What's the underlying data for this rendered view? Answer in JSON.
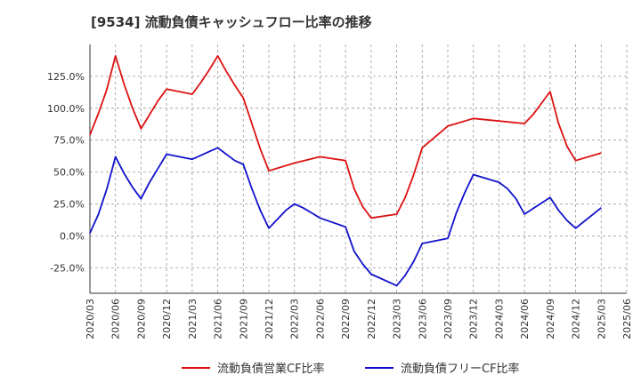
{
  "title": "[9534]  流動負債キャッシュフロー比率の推移",
  "chart_data": {
    "type": "line",
    "title": "[9534]  流動負債キャッシュフロー比率の推移",
    "xlabel": "",
    "ylabel": "",
    "ylim": [
      -45,
      150
    ],
    "yticks": [
      -25,
      0,
      25,
      50,
      75,
      100,
      125
    ],
    "ytick_labels": [
      "-25.0%",
      "0.0%",
      "25.0%",
      "50.0%",
      "75.0%",
      "100.0%",
      "125.0%"
    ],
    "xtick_labels": [
      "2020/03",
      "2020/06",
      "2020/09",
      "2020/12",
      "2021/03",
      "2021/06",
      "2021/09",
      "2021/12",
      "2022/03",
      "2022/06",
      "2022/09",
      "2022/12",
      "2023/03",
      "2023/06",
      "2023/09",
      "2023/12",
      "2024/03",
      "2024/06",
      "2024/09",
      "2024/12",
      "2025/03",
      "2025/06"
    ],
    "grid": true,
    "legend_position": "bottom",
    "series": [
      {
        "name": "流動負債営業CF比率",
        "color": "#dd1111",
        "x": [
          "2020/03",
          "2020/04",
          "2020/05",
          "2020/06",
          "2020/07",
          "2020/08",
          "2020/09",
          "2020/10",
          "2020/11",
          "2020/12",
          "2021/03",
          "2021/04",
          "2021/05",
          "2021/06",
          "2021/07",
          "2021/08",
          "2021/09",
          "2021/10",
          "2021/11",
          "2021/12",
          "2022/03",
          "2022/06",
          "2022/09",
          "2022/10",
          "2022/11",
          "2022/12",
          "2023/03",
          "2023/04",
          "2023/05",
          "2023/06",
          "2023/09",
          "2023/12",
          "2024/03",
          "2024/06",
          "2024/07",
          "2024/08",
          "2024/09",
          "2024/10",
          "2024/11",
          "2024/12",
          "2025/03"
        ],
        "values": [
          79,
          96,
          115,
          141,
          119,
          100,
          84,
          95,
          106,
          115,
          111,
          120,
          130,
          141,
          129,
          118,
          108,
          88,
          68,
          51,
          57,
          62,
          59,
          37,
          23,
          14,
          17,
          30,
          48,
          69,
          86,
          92,
          90,
          88,
          95,
          104,
          113,
          88,
          70,
          59,
          65
        ]
      },
      {
        "name": "流動負債フリーCF比率",
        "color": "#1111cc",
        "x": [
          "2020/03",
          "2020/04",
          "2020/05",
          "2020/06",
          "2020/07",
          "2020/08",
          "2020/09",
          "2020/10",
          "2020/11",
          "2020/12",
          "2021/03",
          "2021/04",
          "2021/05",
          "2021/06",
          "2021/07",
          "2021/08",
          "2021/09",
          "2021/10",
          "2021/11",
          "2021/12",
          "2022/01",
          "2022/02",
          "2022/03",
          "2022/04",
          "2022/05",
          "2022/06",
          "2022/09",
          "2022/10",
          "2022/11",
          "2022/12",
          "2023/03",
          "2023/04",
          "2023/05",
          "2023/06",
          "2023/09",
          "2023/10",
          "2023/11",
          "2023/12",
          "2024/03",
          "2024/04",
          "2024/05",
          "2024/06",
          "2024/09",
          "2024/10",
          "2024/11",
          "2024/12",
          "2025/03"
        ],
        "values": [
          2,
          17,
          37,
          62,
          49,
          38,
          29,
          42,
          53,
          64,
          60,
          63,
          66,
          69,
          64,
          59,
          56,
          37,
          20,
          6,
          13,
          20,
          25,
          22,
          18,
          14,
          7,
          -12,
          -22,
          -30,
          -39,
          -31,
          -20,
          -6,
          -2,
          18,
          34,
          48,
          42,
          37,
          29,
          17,
          30,
          20,
          12,
          6,
          22
        ]
      }
    ]
  }
}
